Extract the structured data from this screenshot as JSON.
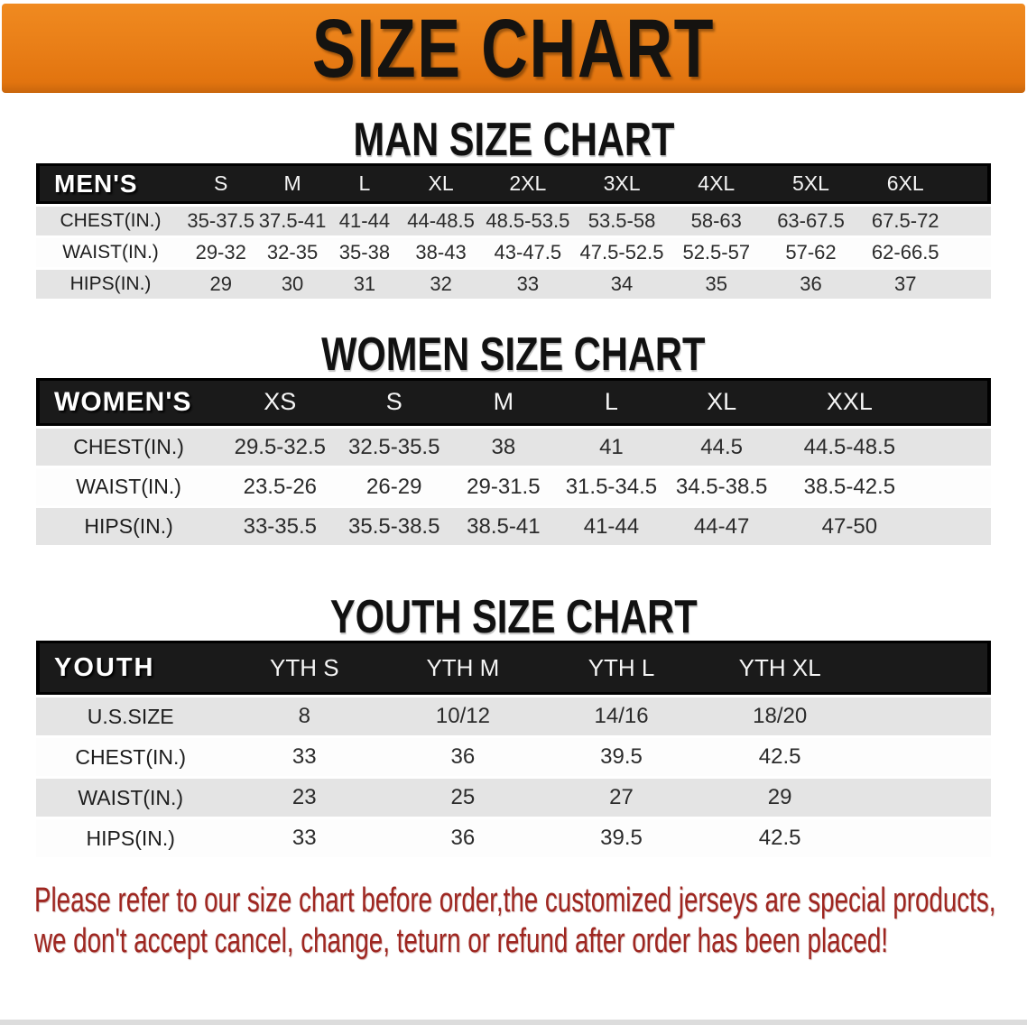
{
  "banner": {
    "title": "SIZE CHART",
    "bg_color": "#e87d16",
    "text_color": "#151310"
  },
  "sections": [
    {
      "heading": "MAN SIZE CHART",
      "table": {
        "header_label": "MEN'S",
        "columns": [
          "S",
          "M",
          "L",
          "XL",
          "2XL",
          "3XL",
          "4XL",
          "5XL",
          "6XL"
        ],
        "rows": [
          {
            "label": "CHEST(IN.)",
            "values": [
              "35-37.5",
              "37.5-41",
              "41-44",
              "44-48.5",
              "48.5-53.5",
              "53.5-58",
              "58-63",
              "63-67.5",
              "67.5-72"
            ]
          },
          {
            "label": "WAIST(IN.)",
            "values": [
              "29-32",
              "32-35",
              "35-38",
              "38-43",
              "43-47.5",
              "47.5-52.5",
              "52.5-57",
              "57-62",
              "62-66.5"
            ]
          },
          {
            "label": "HIPS(IN.)",
            "values": [
              "29",
              "30",
              "31",
              "32",
              "33",
              "34",
              "35",
              "36",
              "37"
            ]
          }
        ]
      }
    },
    {
      "heading": "WOMEN SIZE CHART",
      "table": {
        "header_label": "WOMEN'S",
        "columns": [
          "XS",
          "S",
          "M",
          "L",
          "XL",
          "XXL"
        ],
        "rows": [
          {
            "label": "CHEST(IN.)",
            "values": [
              "29.5-32.5",
              "32.5-35.5",
              "38",
              "41",
              "44.5",
              "44.5-48.5"
            ]
          },
          {
            "label": "WAIST(IN.)",
            "values": [
              "23.5-26",
              "26-29",
              "29-31.5",
              "31.5-34.5",
              "34.5-38.5",
              "38.5-42.5"
            ]
          },
          {
            "label": "HIPS(IN.)",
            "values": [
              "33-35.5",
              "35.5-38.5",
              "38.5-41",
              "41-44",
              "44-47",
              "47-50"
            ]
          }
        ]
      }
    },
    {
      "heading": "YOUTH SIZE CHART",
      "table": {
        "header_label": "YOUTH",
        "columns": [
          "YTH S",
          "YTH M",
          "YTH L",
          "YTH XL"
        ],
        "rows": [
          {
            "label": "U.S.SIZE",
            "values": [
              "8",
              "10/12",
              "14/16",
              "18/20"
            ]
          },
          {
            "label": "CHEST(IN.)",
            "values": [
              "33",
              "36",
              "39.5",
              "42.5"
            ]
          },
          {
            "label": "WAIST(IN.)",
            "values": [
              "23",
              "25",
              "27",
              "29"
            ]
          },
          {
            "label": "HIPS(IN.)",
            "values": [
              "33",
              "36",
              "39.5",
              "42.5"
            ]
          }
        ]
      }
    }
  ],
  "disclaimer": {
    "line1": "Please refer to our size chart before order,the customized jerseys are special products,",
    "line2": "we don't accept cancel, change, teturn or refund after order has been placed!",
    "text_color": "#9e2620"
  },
  "style_colors": {
    "header_bar": "#1a1a1a",
    "row_stripe": "#e4e4e4"
  }
}
